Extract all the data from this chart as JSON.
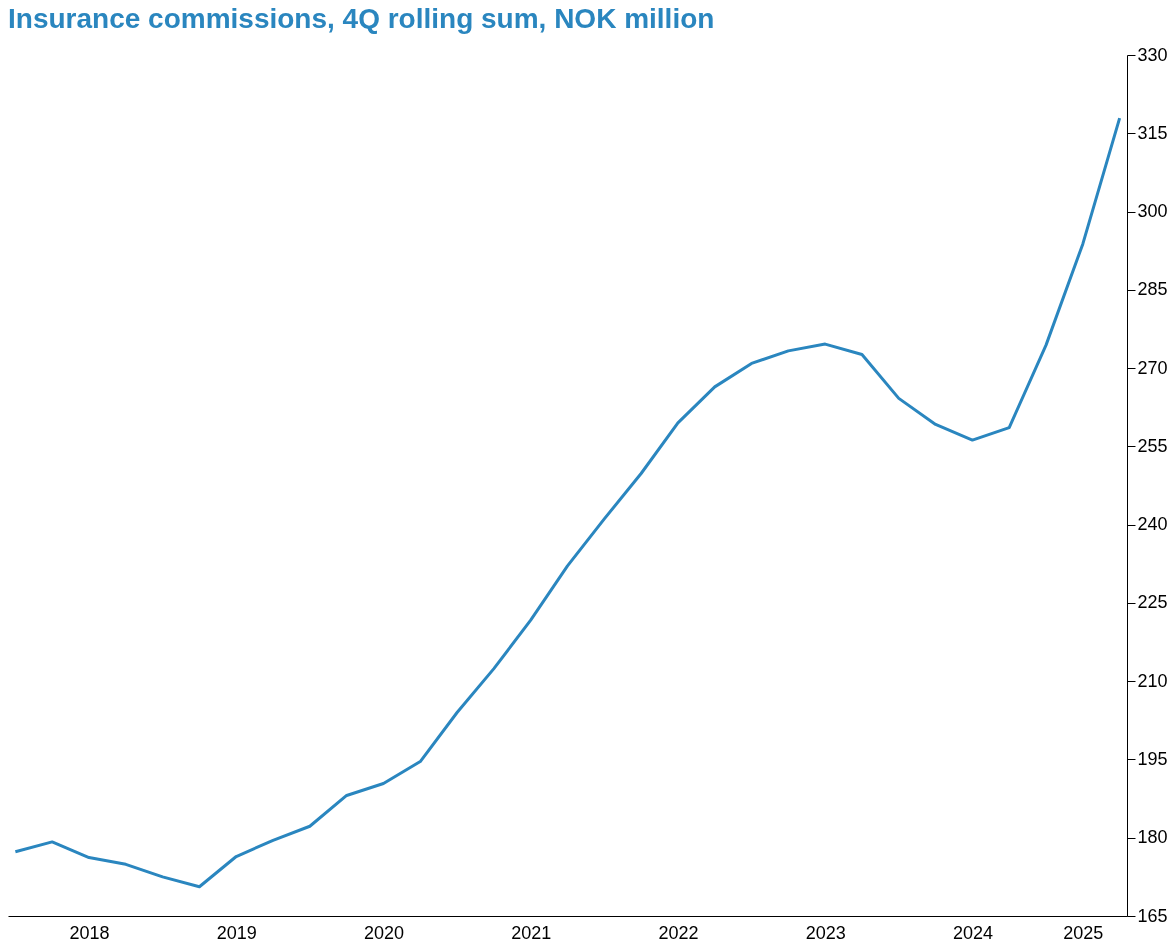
{
  "chart_data": {
    "type": "line",
    "title": "Insurance commissions, 4Q rolling sum, NOK million",
    "categories": [
      null,
      null,
      "2018",
      null,
      null,
      null,
      "2019",
      null,
      null,
      null,
      "2020",
      null,
      null,
      null,
      "2021",
      null,
      null,
      null,
      "2022",
      null,
      null,
      null,
      "2023",
      null,
      null,
      null,
      "2024",
      null,
      null,
      "2025",
      null
    ],
    "series": [
      {
        "color": "#2a86bf",
        "values": [
          177.3,
          179.2,
          176.2,
          174.9,
          172.5,
          170.6,
          176.4,
          179.5,
          182.2,
          188.1,
          190.4,
          194.6,
          204.0,
          212.4,
          221.7,
          232.1,
          241.1,
          249.8,
          259.5,
          266.4,
          270.9,
          273.3,
          274.6,
          272.6,
          264.2,
          259.2,
          256.2,
          258.6,
          274.4,
          293.8,
          317.9
        ]
      }
    ],
    "ylim": [
      165,
      330
    ],
    "yticks": [
      165,
      180,
      195,
      210,
      225,
      240,
      255,
      270,
      285,
      300,
      315,
      330
    ],
    "grid": false
  }
}
